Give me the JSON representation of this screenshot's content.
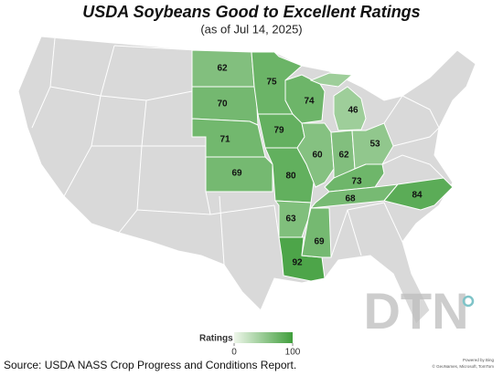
{
  "map": {
    "title": "USDA Soybeans Good to Excellent Ratings",
    "subtitle": "(as of Jul 14, 2025)",
    "regions": [
      {
        "value": 62
      },
      {
        "value": 70
      },
      {
        "value": 71
      },
      {
        "value": 69
      },
      {
        "value": 75
      },
      {
        "value": 79
      },
      {
        "value": 80
      },
      {
        "value": 63
      },
      {
        "value": 92
      },
      {
        "value": 69
      },
      {
        "value": 74
      },
      {
        "value": 60
      },
      {
        "value": 62
      },
      {
        "value": 46
      },
      {
        "value": 53
      },
      {
        "value": 73
      },
      {
        "value": 68
      },
      {
        "value": 84
      }
    ],
    "colorlim": [
      0,
      100
    ],
    "colors": [
      "#eef6ea",
      "#3f9e3b"
    ],
    "legend": {
      "title": "Ratings",
      "ticks": [
        0,
        100
      ]
    },
    "source": "Source: USDA NASS Crop Progress and Conditions Report.",
    "logo": "DTN",
    "attribution": [
      "Powered by Bing",
      "© GeoNames, Microsoft, TomTom"
    ]
  }
}
